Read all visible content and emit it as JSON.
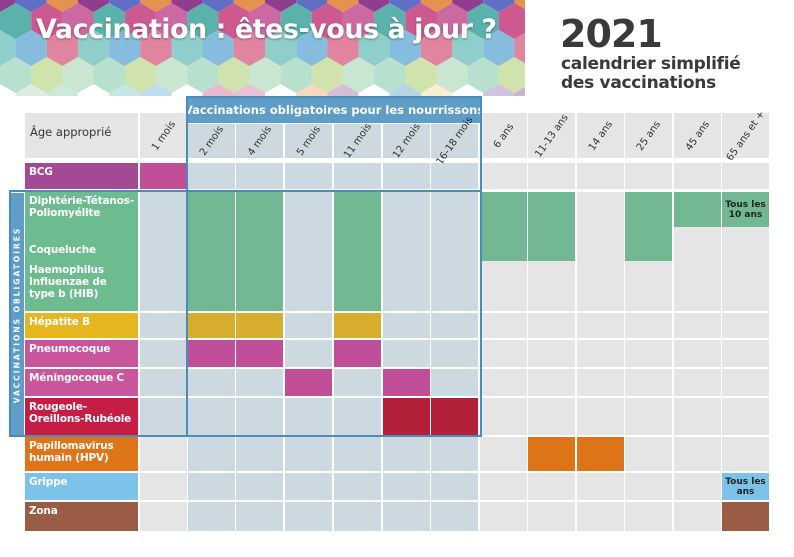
{
  "header": {
    "title": "Vaccination : êtes-vous à jour ?",
    "year": "2021",
    "subtitle_line1": "calendrier simplifié",
    "subtitle_line2": "des vaccinations"
  },
  "table": {
    "age_label": "Âge approprié",
    "group_header": "Vaccinations obligatoires pour les nourrissons",
    "side_label": "VACCINATIONS OBLIGATOIRES",
    "ages": [
      "1 mois",
      "2 mois",
      "4 mois",
      "5 mois",
      "11 mois",
      "12 mois",
      "16-18 mois",
      "6 ans",
      "11-13 ans",
      "14 ans",
      "25 ans",
      "45 ans",
      "65 ans et +"
    ],
    "vaccines": [
      {
        "name": "BCG",
        "color": "#a34a96"
      },
      {
        "name": "Diphtérie-Tétanos-Poliomyélite",
        "color": "#6cbc8f"
      },
      {
        "name": "Coqueluche",
        "color": "#6cbc8f"
      },
      {
        "name": "Haemophilus Influenzae de type b (HIB)",
        "color": "#6cbc8f"
      },
      {
        "name": "Hépatite B",
        "color": "#e6b51f"
      },
      {
        "name": "Pneumocoque",
        "color": "#c9559c"
      },
      {
        "name": "Méningocoque C",
        "color": "#c9559c"
      },
      {
        "name": "Rougeole-Oreillons-Rubéole",
        "color": "#c51d43"
      },
      {
        "name": "Papillomavirus humain (HPV)",
        "color": "#df7418"
      },
      {
        "name": "Grippe",
        "color": "#7cc3ea"
      },
      {
        "name": "Zona",
        "color": "#9a5c45"
      }
    ],
    "notes": {
      "dtp_65": "Tous les 10 ans",
      "grippe_65": "Tous les ans"
    }
  },
  "colors": {
    "group_border": "#4c8cb8",
    "group_header": "#5d9dc8",
    "empty_cell": "#e5e5e5",
    "group_cell": "#cdd9e0",
    "green_fill": "#72b892",
    "yellow_fill": "#d7ad2e",
    "magenta_fill": "#c04e98",
    "red_fill": "#b3203a",
    "orange_fill": "#de7418",
    "blue_fill": "#7cc3ea",
    "brown_fill": "#9a5c45"
  }
}
